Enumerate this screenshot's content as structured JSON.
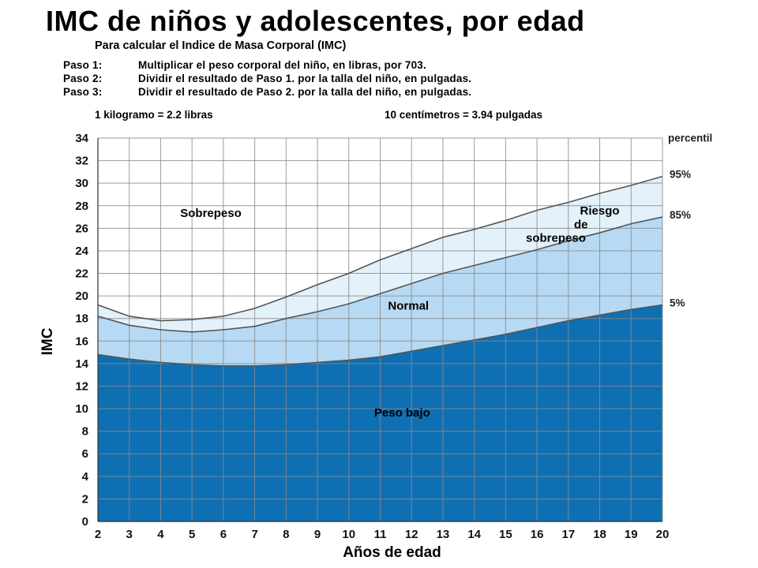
{
  "header": {
    "title": "IMC de niños y adolescentes, por edad",
    "subtitle": "Para calcular el Indice de Masa Corporal (IMC)",
    "steps": [
      {
        "label": "Paso 1:",
        "text": "Multiplicar el peso corporal del niño, en libras, por 703."
      },
      {
        "label": "Paso 2:",
        "text": "Dividir el resultado de Paso 1. por la talla del niño, en pulgadas."
      },
      {
        "label": "Paso 3:",
        "text": "Dividir el resultado de Paso 2. por la talla del niño, en pulgadas."
      }
    ],
    "conversion_kg": "1 kilogramo = 2.2 libras",
    "conversion_cm": "10 centímetros = 3.94 pulgadas"
  },
  "chart_data": {
    "type": "area",
    "xlabel": "Años de edad",
    "ylabel": "IMC",
    "xlim": [
      2,
      20
    ],
    "ylim": [
      0,
      34
    ],
    "x_ticks": [
      2,
      3,
      4,
      5,
      6,
      7,
      8,
      9,
      10,
      11,
      12,
      13,
      14,
      15,
      16,
      17,
      18,
      19,
      20
    ],
    "y_ticks": [
      0,
      2,
      4,
      6,
      8,
      10,
      12,
      14,
      16,
      18,
      20,
      22,
      24,
      26,
      28,
      30,
      32,
      34
    ],
    "grid": true,
    "percentile_header": "percentil",
    "x": [
      2,
      3,
      4,
      5,
      6,
      7,
      8,
      9,
      10,
      11,
      12,
      13,
      14,
      15,
      16,
      17,
      18,
      19,
      20
    ],
    "series": [
      {
        "name": "5%",
        "values": [
          14.8,
          14.4,
          14.1,
          13.9,
          13.8,
          13.8,
          13.9,
          14.1,
          14.3,
          14.6,
          15.1,
          15.6,
          16.1,
          16.6,
          17.2,
          17.8,
          18.3,
          18.8,
          19.2
        ]
      },
      {
        "name": "85%",
        "values": [
          18.2,
          17.4,
          17.0,
          16.8,
          17.0,
          17.3,
          18.0,
          18.6,
          19.3,
          20.2,
          21.1,
          22.0,
          22.7,
          23.4,
          24.1,
          24.9,
          25.6,
          26.4,
          27.0
        ]
      },
      {
        "name": "95%",
        "values": [
          19.2,
          18.2,
          17.8,
          17.9,
          18.2,
          18.9,
          19.9,
          21.0,
          22.0,
          23.2,
          24.2,
          25.2,
          25.9,
          26.7,
          27.6,
          28.3,
          29.1,
          29.8,
          30.6
        ]
      }
    ],
    "region_labels": [
      {
        "text": "Sobrepeso",
        "x": 5.6,
        "y": 27.0
      },
      {
        "text": "Riesgo",
        "x": 18.0,
        "y": 27.2
      },
      {
        "text": "de",
        "x": 17.4,
        "y": 26.0
      },
      {
        "text": "sobrepeso",
        "x": 16.6,
        "y": 24.8
      },
      {
        "text": "Normal",
        "x": 11.9,
        "y": 18.8
      },
      {
        "text": "Peso bajo",
        "x": 11.7,
        "y": 9.3
      }
    ],
    "colors": {
      "below_5": "#0f6fb3",
      "normal": "#b7d9f3",
      "risk": "#e3f1fb",
      "line": "#555555",
      "grid": "#8a8a8a"
    }
  }
}
